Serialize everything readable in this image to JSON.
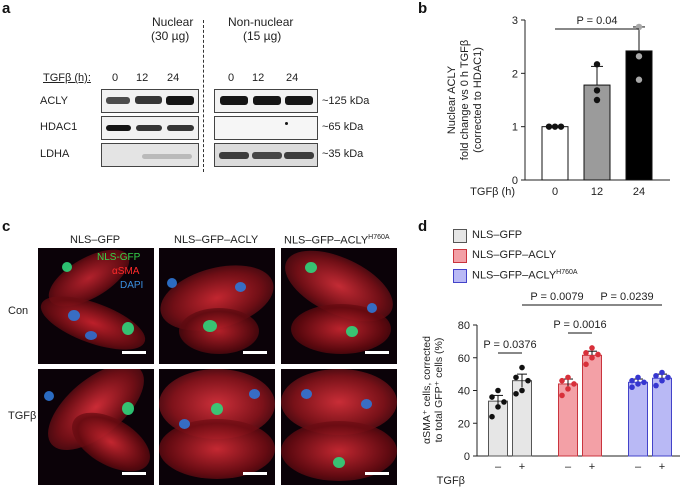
{
  "panels": {
    "a": "a",
    "b": "b",
    "c": "c",
    "d": "d"
  },
  "panel_a": {
    "group_nuclear": "Nuclear",
    "group_nuclear_amount": "(30 µg)",
    "group_nonnuclear": "Non-nuclear",
    "group_nonnuclear_amount": "(15 µg)",
    "tgfb_label": "TGFβ (h):",
    "timepoints": [
      "0",
      "12",
      "24",
      "0",
      "12",
      "24"
    ],
    "rows": [
      {
        "name": "ACLY",
        "size": "~125 kDa"
      },
      {
        "name": "HDAC1",
        "size": "~65 kDa"
      },
      {
        "name": "LDHA",
        "size": "~35 kDa"
      }
    ]
  },
  "panel_c": {
    "columns": [
      "NLS–GFP",
      "NLS–GFP–ACLY",
      "NLS–GFP–ACLY"
    ],
    "column3_superscript": "H760A",
    "rows": [
      "Con",
      "TGFβ"
    ],
    "legend": [
      {
        "label": "NLS-GFP",
        "color": "#35d44a"
      },
      {
        "label": "αSMA",
        "color": "#ff2a2a"
      },
      {
        "label": "DAPI",
        "color": "#3a8fe0"
      }
    ]
  },
  "colors": {
    "red_bar": "#f3a0a6",
    "red_edge": "#c9343d",
    "blue_bar": "#b9b9f5",
    "blue_edge": "#4343c9",
    "grey_bar": "#e6e6e6"
  },
  "chart_data": [
    {
      "type": "bar",
      "panel": "b",
      "categories": [
        "0",
        "12",
        "24"
      ],
      "values": [
        1.0,
        1.78,
        2.42
      ],
      "sem": [
        0.0,
        0.35,
        0.45
      ],
      "points": [
        [
          1.0,
          1.0,
          1.0
        ],
        [
          1.5,
          1.68,
          2.17
        ],
        [
          1.88,
          2.32,
          2.87
        ]
      ],
      "bar_fills": [
        "#ffffff",
        "#9b9b9b",
        "#000000"
      ],
      "ylabel_lines": [
        "Nuclear ACLY",
        "fold change vs 0 h TGFβ",
        "(corrected to HDAC1)"
      ],
      "xlabel": "TGFβ (h)",
      "ylim": [
        0,
        3
      ],
      "yticks": [
        0,
        1,
        2,
        3
      ],
      "annotations": [
        {
          "text": "P = 0.04",
          "from": "0",
          "to": "24"
        }
      ]
    },
    {
      "type": "bar",
      "panel": "d",
      "groups": [
        "NLS–GFP",
        "NLS–GFP–ACLY",
        "NLS–GFP–ACLY"
      ],
      "group3_superscript": "H760A",
      "x_tick_labels": [
        "–",
        "+",
        "–",
        "+",
        "–",
        "+"
      ],
      "xlabel": "TGFβ",
      "series": [
        {
          "name": "NLS–GFP",
          "values": [
            33.5,
            46.0
          ],
          "sem": [
            3.5,
            4.0
          ],
          "points": [
            [
              24,
              30,
              33,
              36,
              40
            ],
            [
              38,
              40,
              46,
              48,
              54
            ]
          ]
        },
        {
          "name": "NLS–GFP–ACLY",
          "values": [
            44.0,
            61.5
          ],
          "sem": [
            3.0,
            2.5
          ],
          "points": [
            [
              37,
              41,
              44,
              46,
              48
            ],
            [
              56,
              60,
              62,
              63,
              66
            ]
          ]
        },
        {
          "name": "NLS–GFP–ACLY",
          "name_superscript": "H760A",
          "values": [
            45.0,
            47.5
          ],
          "sem": [
            2.0,
            2.5
          ],
          "points": [
            [
              42,
              44,
              45,
              46,
              48
            ],
            [
              43,
              46,
              48,
              49,
              51
            ]
          ]
        }
      ],
      "ylabel_lines": [
        "αSMA⁺ cells, corrected",
        "to total GFP⁺ cells (%)"
      ],
      "ylim": [
        0,
        80
      ],
      "yticks": [
        0,
        20,
        40,
        60,
        80
      ],
      "annotations": [
        {
          "text": "P = 0.0376",
          "from": 0,
          "to": 1
        },
        {
          "text": "P = 0.0016",
          "from": 2,
          "to": 3
        },
        {
          "text": "P = 0.0079",
          "from": 1,
          "to": 3
        },
        {
          "text": "P = 0.0239",
          "from": 3,
          "to": 5
        }
      ]
    }
  ]
}
